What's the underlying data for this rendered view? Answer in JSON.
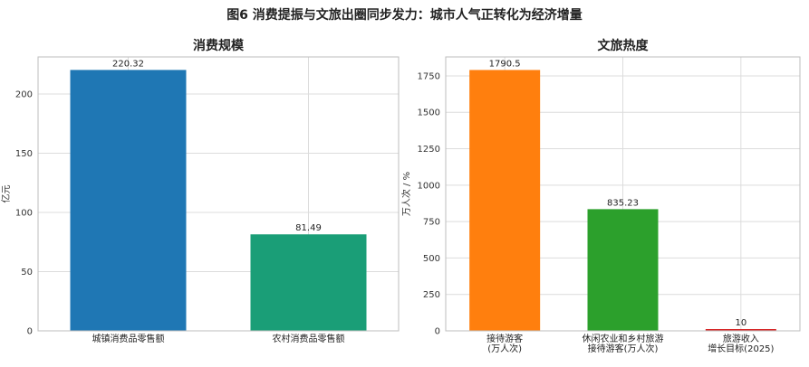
{
  "figure_title": "图6  消费提振与文旅出圈同步发力：城市人气正转化为经济增量",
  "chart_data": [
    {
      "type": "bar",
      "title": "消费规模",
      "xlabel": "",
      "ylabel": "亿元",
      "categories": [
        "城镇消费品零售额",
        "农村消费品零售额"
      ],
      "values": [
        220.32,
        81.49
      ],
      "value_labels": [
        "220.32",
        "81.49"
      ],
      "colors": [
        "#1f77b4",
        "#1a9e77"
      ],
      "ylim": [
        0,
        231.3
      ],
      "yticks": [
        0,
        50,
        100,
        150,
        200
      ],
      "grid": true
    },
    {
      "type": "bar",
      "title": "文旅热度",
      "xlabel": "",
      "ylabel": "万人次 / %",
      "categories": [
        [
          "接待游客",
          "(万人次)"
        ],
        [
          "休闲农业和乡村旅游",
          "接待游客(万人次)"
        ],
        [
          "旅游收入",
          "增长目标(2025)"
        ]
      ],
      "values": [
        1790.5,
        835.23,
        10
      ],
      "value_labels": [
        "1790.5",
        "835.23",
        "10"
      ],
      "colors": [
        "#ff7f0e",
        "#2ca02c",
        "#d62728"
      ],
      "ylim": [
        0,
        1880
      ],
      "yticks": [
        0,
        250,
        500,
        750,
        1000,
        1250,
        1500,
        1750
      ],
      "grid": true
    }
  ]
}
